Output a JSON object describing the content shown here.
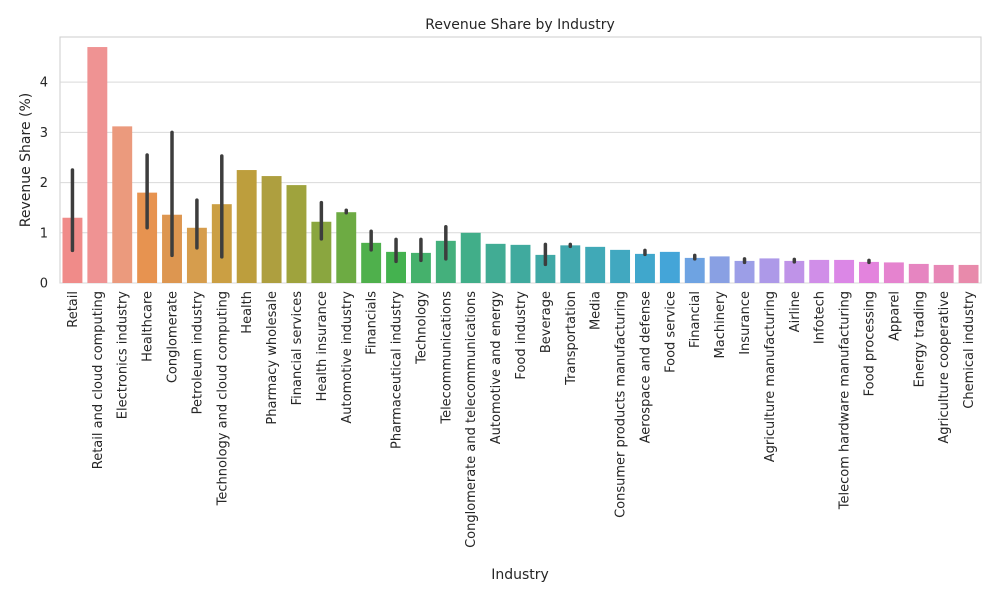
{
  "chart_data": {
    "type": "bar",
    "title": "Revenue Share by Industry",
    "xlabel": "Industry",
    "ylabel": "Revenue Share (%)",
    "ylim": [
      0,
      4.9
    ],
    "yticks": [
      0,
      1,
      2,
      3,
      4
    ],
    "grid": "horizontal",
    "legend": "none",
    "categories": [
      "Retail",
      "Retail and cloud computing",
      "Electronics industry",
      "Healthcare",
      "Conglomerate",
      "Petroleum industry",
      "Technology and cloud computing",
      "Health",
      "Pharmacy wholesale",
      "Financial services",
      "Health insurance",
      "Automotive industry",
      "Financials",
      "Pharmaceutical industry",
      "Technology",
      "Telecommunications",
      "Conglomerate and telecommunications",
      "Automotive and energy",
      "Food industry",
      "Beverage",
      "Transportation",
      "Media",
      "Consumer products manufacturing",
      "Aerospace and defense",
      "Food service",
      "Financial",
      "Machinery",
      "Insurance",
      "Agriculture manufacturing",
      "Airline",
      "Infotech",
      "Telecom hardware manufacturing",
      "Food processing",
      "Apparel",
      "Energy trading",
      "Agriculture cooperative",
      "Chemical industry"
    ],
    "values": [
      1.3,
      4.7,
      3.12,
      1.8,
      1.36,
      1.1,
      1.57,
      2.25,
      2.13,
      1.95,
      1.22,
      1.41,
      0.8,
      0.62,
      0.6,
      0.84,
      1.0,
      0.78,
      0.76,
      0.56,
      0.75,
      0.72,
      0.66,
      0.58,
      0.62,
      0.5,
      0.53,
      0.44,
      0.49,
      0.44,
      0.46,
      0.46,
      0.42,
      0.41,
      0.38,
      0.36,
      0.36
    ],
    "error_low": [
      0.65,
      null,
      null,
      1.1,
      0.55,
      0.7,
      0.52,
      null,
      null,
      null,
      0.88,
      1.4,
      0.66,
      0.43,
      0.45,
      0.48,
      null,
      null,
      null,
      0.37,
      0.73,
      null,
      null,
      0.57,
      null,
      0.48,
      null,
      0.41,
      null,
      0.42,
      null,
      null,
      0.41,
      null,
      null,
      null,
      null
    ],
    "error_high": [
      2.25,
      null,
      null,
      2.55,
      3.0,
      1.65,
      2.53,
      null,
      null,
      null,
      1.6,
      1.45,
      1.03,
      0.87,
      0.87,
      1.12,
      null,
      null,
      null,
      0.77,
      0.77,
      null,
      null,
      0.65,
      null,
      0.55,
      null,
      0.48,
      null,
      0.47,
      null,
      null,
      0.45,
      null,
      null,
      null,
      null
    ],
    "colors": [
      "#f08b89",
      "#ef9393",
      "#eb9a7d",
      "#e79350",
      "#dd9650",
      "#d69d4d",
      "#cb9f43",
      "#bd9e3d",
      "#ae9f3f",
      "#9fa33d",
      "#8aa63f",
      "#6dab43",
      "#4fb04c",
      "#44b24f",
      "#45b16c",
      "#44b07c",
      "#41ae89",
      "#41ac94",
      "#40aa9e",
      "#40a9a6",
      "#41a8ae",
      "#40a9b7",
      "#41a8c0",
      "#40a7cc",
      "#44a5d8",
      "#6ea3e2",
      "#89a0e3",
      "#9c9ee7",
      "#ad99e8",
      "#bf93e8",
      "#d08ee8",
      "#db87e6",
      "#e383dd",
      "#e583cf",
      "#e685c1",
      "#e787b6",
      "#e88aab"
    ]
  }
}
